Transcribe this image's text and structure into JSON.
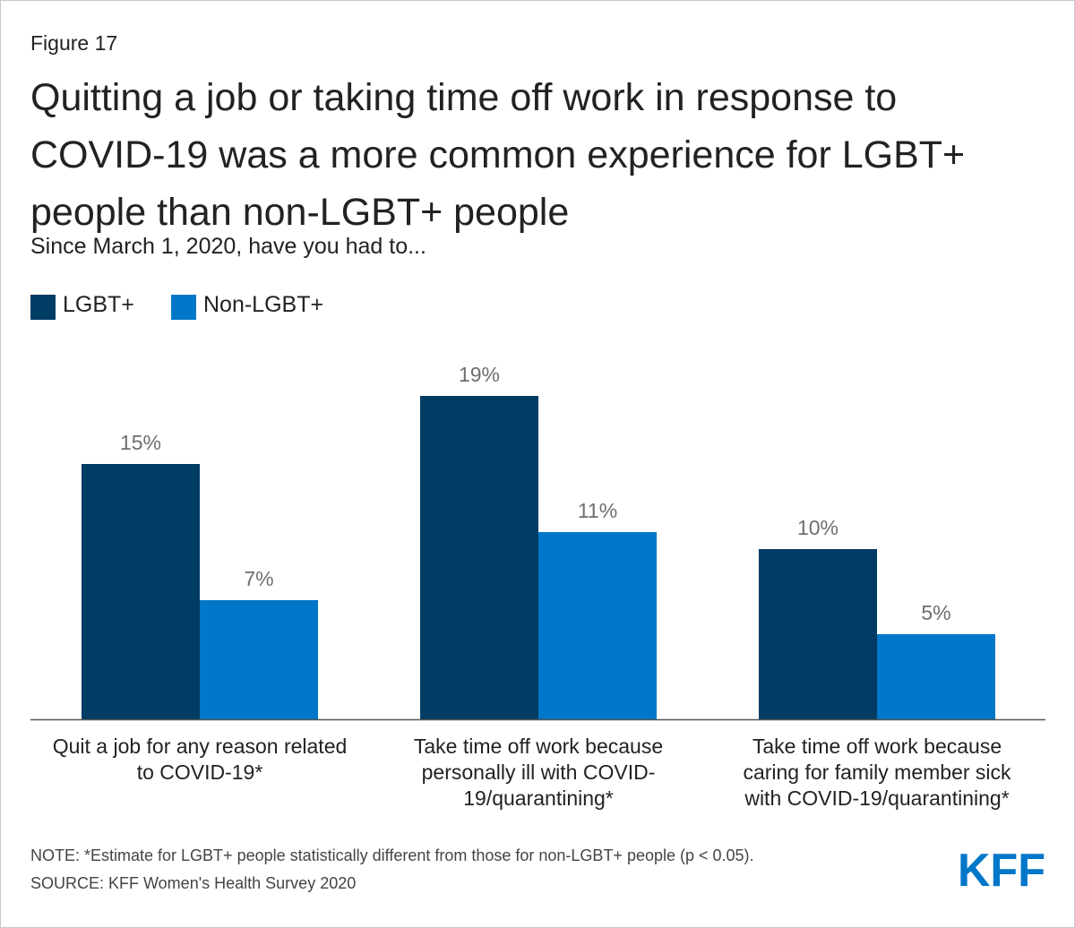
{
  "figure_label": "Figure 17",
  "chart_data": {
    "type": "bar",
    "title": "Quitting a job or taking time off work in response to COVID-19 was a more common experience for LGBT+ people than non-LGBT+ people",
    "subtitle": "Since March 1, 2020, have you had to...",
    "categories": [
      "Quit a job for any reason related to COVID-19*",
      "Take time off work because personally ill with COVID-19/quarantining*",
      "Take time off work because caring for family member sick with COVID-19/quarantining*"
    ],
    "series": [
      {
        "name": "LGBT+",
        "color": "#003c63",
        "values": [
          15,
          19,
          10
        ],
        "labels": [
          "15%",
          "19%",
          "10%"
        ]
      },
      {
        "name": "Non-LGBT+",
        "color": "#0077c8",
        "values": [
          7,
          11,
          5
        ],
        "labels": [
          "7%",
          "11%",
          "5%"
        ]
      }
    ],
    "value_unit": "%",
    "ylim": [
      0,
      19
    ],
    "grid": false,
    "legend_position": "top-left",
    "xlabel": "",
    "ylabel": ""
  },
  "footer": {
    "note": "NOTE: *Estimate for LGBT+ people statistically different from those for non-LGBT+ people (p < 0.05).",
    "source": "SOURCE: KFF Women's Health Survey 2020"
  },
  "logo": {
    "text": "KFF",
    "color": "#0077c8"
  }
}
